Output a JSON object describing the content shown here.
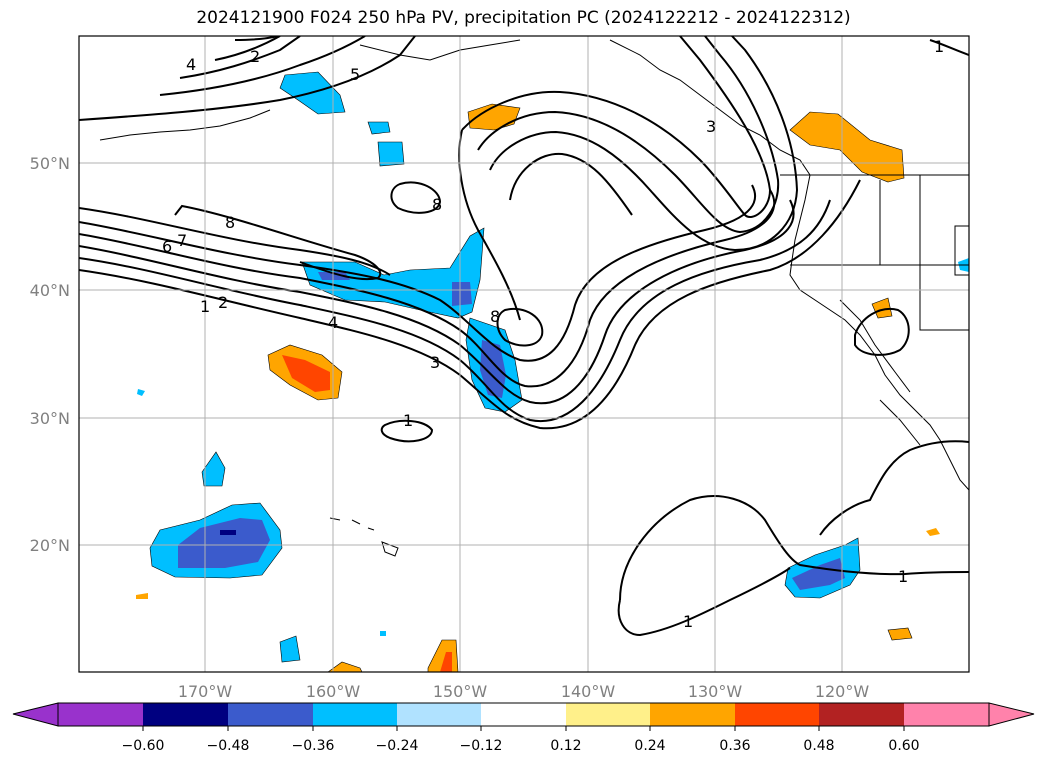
{
  "title": "2024121900 F024 250 hPa PV, precipitation PC (2024122212 - 2024122312)",
  "axes": {
    "lon_labels": [
      "170°W",
      "160°W",
      "150°W",
      "140°W",
      "130°W",
      "120°W"
    ],
    "lat_labels": [
      "50°N",
      "40°N",
      "30°N",
      "20°N"
    ],
    "lon_values": [
      -170,
      -160,
      -150,
      -140,
      -130,
      -120
    ],
    "lat_values": [
      50,
      40,
      30,
      20
    ],
    "lon_range": [
      -180,
      -110
    ],
    "lat_range": [
      10,
      60
    ],
    "grid": true
  },
  "colorbar": {
    "ticks": [
      "−0.60",
      "−0.48",
      "−0.36",
      "−0.24",
      "−0.12",
      "0.12",
      "0.24",
      "0.36",
      "0.48",
      "0.60"
    ],
    "colors": [
      "#9932cc",
      "#000080",
      "#3b5bcc",
      "#00bfff",
      "#b0e2ff",
      "#ffffff",
      "#fff08a",
      "#ffa500",
      "#ff4500",
      "#b22222",
      "#ff82ab"
    ],
    "extend": "both"
  },
  "pv_contour_labels": [
    {
      "text": "2"
    },
    {
      "text": "4"
    },
    {
      "text": "5"
    },
    {
      "text": "8"
    },
    {
      "text": "7"
    },
    {
      "text": "6"
    },
    {
      "text": "1"
    },
    {
      "text": "2"
    },
    {
      "text": "4"
    },
    {
      "text": "3"
    },
    {
      "text": "8"
    },
    {
      "text": "8"
    },
    {
      "text": "1"
    },
    {
      "text": "1"
    },
    {
      "text": "1"
    },
    {
      "text": "1"
    },
    {
      "text": "3"
    }
  ],
  "precip_shading_colors": {
    "neg_light": "#b0e2ff",
    "neg_mid": "#00bfff",
    "neg_strong": "#3b5bcc",
    "neg_max": "#000080",
    "pos_light": "#fff08a",
    "pos_mid": "#ffa500",
    "pos_strong": "#ff4500"
  }
}
